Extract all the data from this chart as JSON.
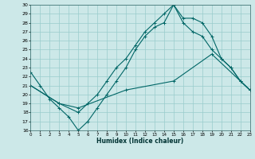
{
  "xlabel": "Humidex (Indice chaleur)",
  "bg_color": "#cce8e8",
  "grid_color": "#99cccc",
  "line_color": "#006666",
  "ylim": [
    16,
    30
  ],
  "xlim": [
    0,
    23
  ],
  "yticks": [
    16,
    17,
    18,
    19,
    20,
    21,
    22,
    23,
    24,
    25,
    26,
    27,
    28,
    29,
    30
  ],
  "xticks": [
    0,
    1,
    2,
    3,
    4,
    5,
    6,
    7,
    8,
    9,
    10,
    11,
    12,
    13,
    14,
    15,
    16,
    17,
    18,
    19,
    20,
    21,
    22,
    23
  ],
  "line1_x": [
    0,
    1,
    2,
    3,
    4,
    5,
    6,
    7,
    8,
    9,
    10,
    11,
    12,
    13,
    14,
    15,
    16,
    17,
    18,
    19,
    20,
    21,
    22,
    23
  ],
  "line1_y": [
    22.5,
    21,
    19.5,
    18.5,
    17.5,
    16,
    17,
    18.5,
    20.0,
    21.5,
    23,
    25,
    26.5,
    27.5,
    28,
    30,
    28.5,
    28.5,
    28,
    26.5,
    24.0,
    23,
    21.5,
    20.5
  ],
  "line2_x": [
    0,
    3,
    5,
    6,
    7,
    8,
    9,
    10,
    11,
    12,
    13,
    14,
    15,
    16,
    17,
    18,
    19,
    20,
    21,
    22,
    23
  ],
  "line2_y": [
    21,
    19,
    18,
    19,
    20,
    21.5,
    23,
    24,
    25.5,
    27,
    28,
    29,
    30,
    28,
    27,
    26.5,
    25,
    24,
    23,
    21.5,
    20.5
  ],
  "line3_x": [
    0,
    3,
    5,
    10,
    15,
    19,
    23
  ],
  "line3_y": [
    21,
    19,
    18.5,
    20.5,
    21.5,
    24.5,
    20.5
  ]
}
